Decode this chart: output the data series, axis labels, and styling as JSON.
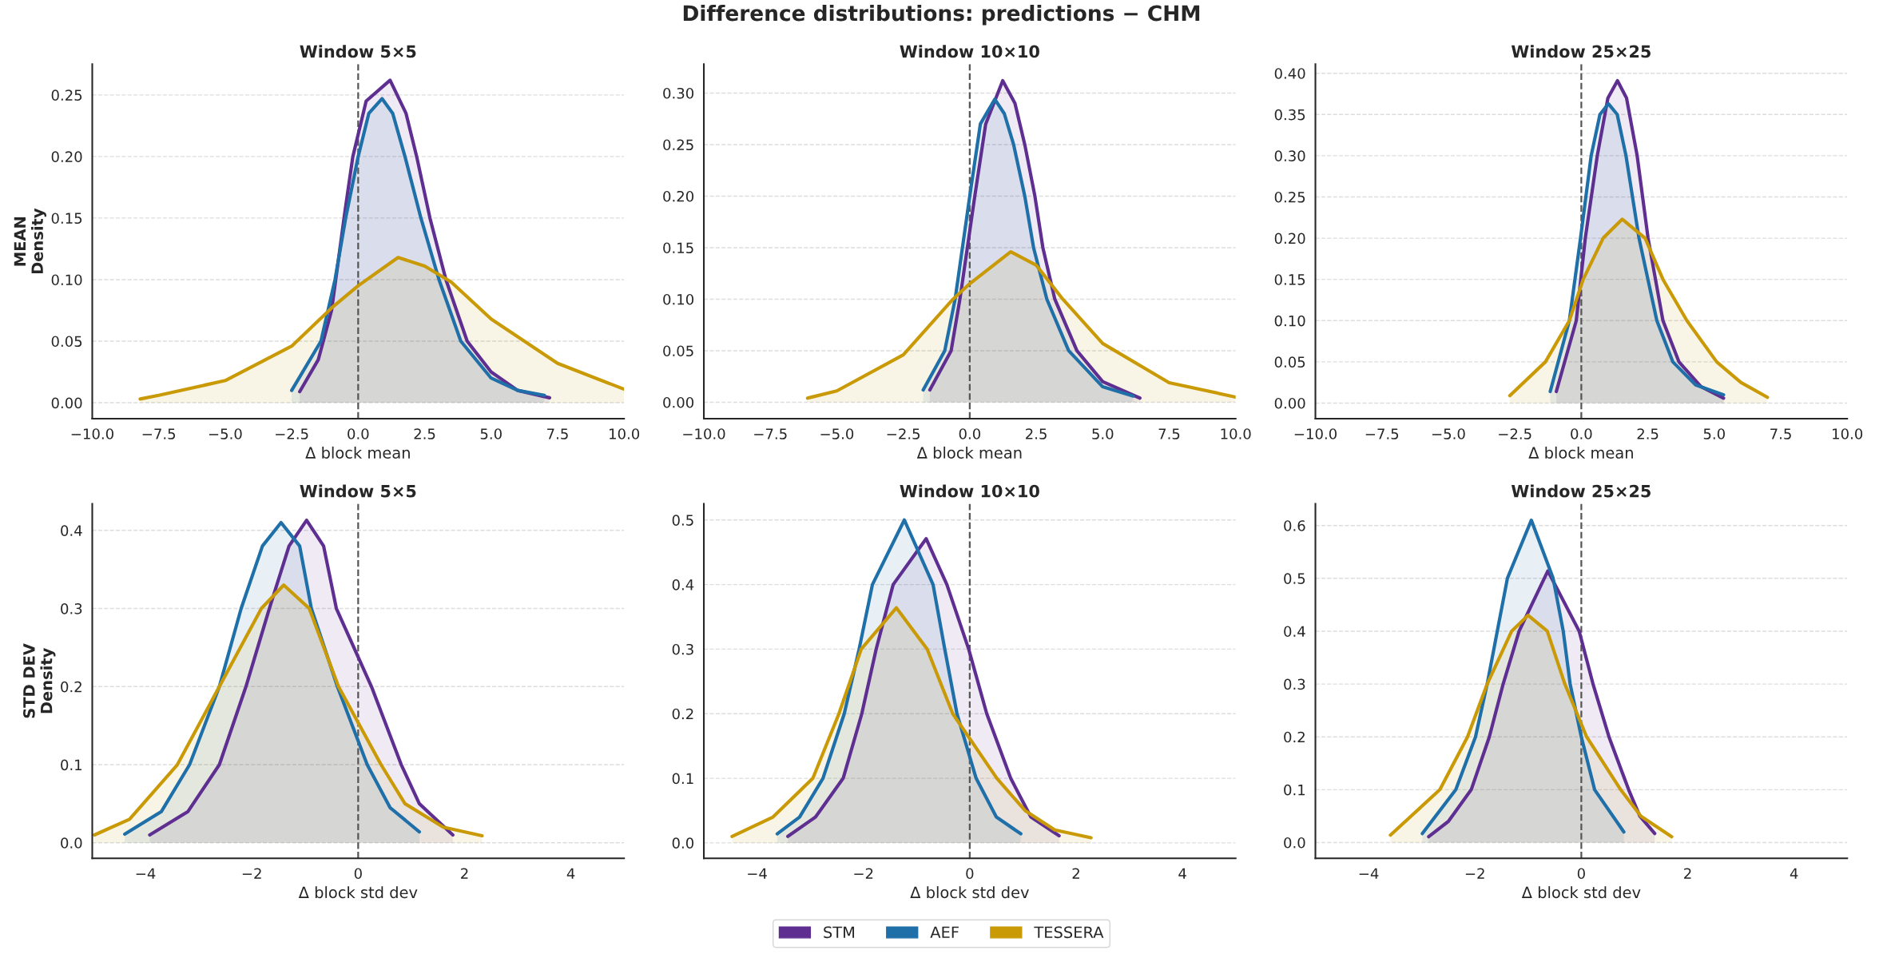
{
  "chart_data": [
    {
      "type": "area",
      "title": "Window 5×5",
      "xlabel": "Δ block mean",
      "ylabel": "MEAN\nDensity",
      "annotations": [
        "Difference distributions: predictions − CHM"
      ],
      "legend": "bottom",
      "xlim": [
        -10,
        10
      ],
      "xticks": [
        {
          "value": -10,
          "label": "−10.0"
        },
        {
          "value": -7.5,
          "label": "−7.5"
        },
        {
          "value": -5,
          "label": "−5.0"
        },
        {
          "value": -2.5,
          "label": "−2.5"
        },
        {
          "value": 0,
          "label": "0.0"
        },
        {
          "value": 2.5,
          "label": "2.5"
        },
        {
          "value": 5,
          "label": "5.0"
        },
        {
          "value": 7.5,
          "label": "7.5"
        },
        {
          "value": 10,
          "label": "10.0"
        }
      ],
      "ylim": [
        -0.013,
        0.275
      ],
      "yticks": [
        {
          "value": 0,
          "label": "0.00"
        },
        {
          "value": 0.05,
          "label": "0.05"
        },
        {
          "value": 0.1,
          "label": "0.10"
        },
        {
          "value": 0.15,
          "label": "0.15"
        },
        {
          "value": 0.2,
          "label": "0.20"
        },
        {
          "value": 0.25,
          "label": "0.25"
        }
      ],
      "grid": "y",
      "ref_lines": [
        {
          "axis": "x",
          "value": 0,
          "color": "#555555",
          "line_style": "dashed"
        }
      ],
      "series": [
        {
          "name": "STM",
          "color": "#5e2f91",
          "x": [
            -2.2,
            -1.5,
            -1.0,
            -0.5,
            -0.2,
            0.3,
            1.2,
            1.8,
            2.2,
            2.7,
            3.3,
            4.1,
            5,
            6,
            7.2
          ],
          "values": [
            0.009,
            0.035,
            0.075,
            0.155,
            0.2,
            0.245,
            0.262,
            0.235,
            0.2,
            0.15,
            0.1,
            0.05,
            0.025,
            0.01,
            0.004
          ]
        },
        {
          "name": "AEF",
          "color": "#1f6fa8",
          "x": [
            -2.5,
            -1.4,
            -0.87,
            -0.47,
            0,
            0.4,
            0.9,
            1.3,
            1.76,
            2.36,
            3.04,
            3.86,
            5,
            6,
            7
          ],
          "values": [
            0.01,
            0.05,
            0.1,
            0.15,
            0.2,
            0.235,
            0.247,
            0.235,
            0.2,
            0.15,
            0.1,
            0.05,
            0.02,
            0.01,
            0.006
          ]
        },
        {
          "name": "TESSERA",
          "color": "#c99a06",
          "x": [
            -8.2,
            -7.5,
            -5,
            -2.5,
            -1,
            0,
            1.5,
            2.5,
            3.5,
            5,
            7.5,
            10
          ],
          "values": [
            0.003,
            0.006,
            0.018,
            0.046,
            0.077,
            0.095,
            0.118,
            0.111,
            0.098,
            0.068,
            0.032,
            0.011
          ]
        }
      ]
    },
    {
      "type": "area",
      "title": "Window 10×10",
      "xlabel": "Δ block mean",
      "xlim": [
        -10,
        10
      ],
      "xticks": [
        {
          "value": -10,
          "label": "−10.0"
        },
        {
          "value": -7.5,
          "label": "−7.5"
        },
        {
          "value": -5,
          "label": "−5.0"
        },
        {
          "value": -2.5,
          "label": "−2.5"
        },
        {
          "value": 0,
          "label": "0.0"
        },
        {
          "value": 2.5,
          "label": "2.5"
        },
        {
          "value": 5,
          "label": "5.0"
        },
        {
          "value": 7.5,
          "label": "7.5"
        },
        {
          "value": 10,
          "label": "10.0"
        }
      ],
      "ylim": [
        -0.016,
        0.328
      ],
      "yticks": [
        {
          "value": 0,
          "label": "0.00"
        },
        {
          "value": 0.05,
          "label": "0.05"
        },
        {
          "value": 0.1,
          "label": "0.10"
        },
        {
          "value": 0.15,
          "label": "0.15"
        },
        {
          "value": 0.2,
          "label": "0.20"
        },
        {
          "value": 0.25,
          "label": "0.25"
        },
        {
          "value": 0.3,
          "label": "0.30"
        }
      ],
      "grid": "y",
      "ref_lines": [
        {
          "axis": "x",
          "value": 0,
          "color": "#555555",
          "line_style": "dashed"
        }
      ],
      "series": [
        {
          "name": "STM",
          "color": "#5e2f91",
          "x": [
            -1.5,
            -0.7,
            -0.37,
            0.19,
            0.6,
            1.24,
            1.7,
            2.07,
            2.45,
            2.75,
            3.2,
            4.03,
            5,
            6.4
          ],
          "values": [
            0.012,
            0.05,
            0.1,
            0.2,
            0.27,
            0.312,
            0.29,
            0.25,
            0.2,
            0.15,
            0.1,
            0.05,
            0.02,
            0.004
          ]
        },
        {
          "name": "AEF",
          "color": "#1f6fa8",
          "x": [
            -1.75,
            -0.94,
            -0.55,
            0,
            0.4,
            0.94,
            1.3,
            1.65,
            2.07,
            2.4,
            2.9,
            3.72,
            5,
            6.15
          ],
          "values": [
            0.012,
            0.05,
            0.1,
            0.2,
            0.27,
            0.294,
            0.28,
            0.25,
            0.2,
            0.15,
            0.1,
            0.05,
            0.015,
            0.006
          ]
        },
        {
          "name": "TESSERA",
          "color": "#c99a06",
          "x": [
            -6.1,
            -5,
            -2.5,
            -0.63,
            0,
            1.54,
            2.5,
            3.5,
            5,
            7.5,
            10
          ],
          "values": [
            0.004,
            0.011,
            0.046,
            0.1,
            0.115,
            0.146,
            0.133,
            0.1,
            0.057,
            0.019,
            0.005
          ]
        }
      ]
    },
    {
      "type": "area",
      "title": "Window 25×25",
      "xlabel": "Δ block mean",
      "xlim": [
        -10,
        10
      ],
      "xticks": [
        {
          "value": -10,
          "label": "−10.0"
        },
        {
          "value": -7.5,
          "label": "−7.5"
        },
        {
          "value": -5,
          "label": "−5.0"
        },
        {
          "value": -2.5,
          "label": "−2.5"
        },
        {
          "value": 0,
          "label": "0.0"
        },
        {
          "value": 2.5,
          "label": "2.5"
        },
        {
          "value": 5,
          "label": "5.0"
        },
        {
          "value": 7.5,
          "label": "7.5"
        },
        {
          "value": 10,
          "label": "10.0"
        }
      ],
      "ylim": [
        -0.019,
        0.411
      ],
      "yticks": [
        {
          "value": 0,
          "label": "0.00"
        },
        {
          "value": 0.05,
          "label": "0.05"
        },
        {
          "value": 0.1,
          "label": "0.10"
        },
        {
          "value": 0.15,
          "label": "0.15"
        },
        {
          "value": 0.2,
          "label": "0.20"
        },
        {
          "value": 0.25,
          "label": "0.25"
        },
        {
          "value": 0.3,
          "label": "0.30"
        },
        {
          "value": 0.35,
          "label": "0.35"
        },
        {
          "value": 0.4,
          "label": "0.40"
        }
      ],
      "grid": "y",
      "ref_lines": [
        {
          "axis": "x",
          "value": 0,
          "color": "#555555",
          "line_style": "dashed"
        }
      ],
      "series": [
        {
          "name": "STM",
          "color": "#5e2f91",
          "x": [
            -0.94,
            -0.19,
            0.15,
            0.6,
            1.0,
            1.36,
            1.7,
            2.1,
            2.51,
            3.07,
            3.67,
            4.5,
            5.35
          ],
          "values": [
            0.014,
            0.1,
            0.2,
            0.3,
            0.37,
            0.391,
            0.37,
            0.3,
            0.2,
            0.1,
            0.05,
            0.02,
            0.006
          ]
        },
        {
          "name": "AEF",
          "color": "#1f6fa8",
          "x": [
            -1.17,
            -0.45,
            -0.03,
            0.37,
            0.7,
            1.02,
            1.35,
            1.68,
            2.17,
            2.84,
            3.44,
            4.3,
            5.35
          ],
          "values": [
            0.014,
            0.1,
            0.2,
            0.3,
            0.35,
            0.363,
            0.35,
            0.3,
            0.2,
            0.1,
            0.05,
            0.022,
            0.01
          ]
        },
        {
          "name": "TESSERA",
          "color": "#c99a06",
          "x": [
            -2.69,
            -1.35,
            -0.45,
            0.07,
            0.82,
            1.54,
            2.4,
            3.07,
            3.97,
            5.09,
            6,
            7
          ],
          "values": [
            0.009,
            0.05,
            0.1,
            0.15,
            0.2,
            0.223,
            0.2,
            0.15,
            0.1,
            0.05,
            0.025,
            0.007
          ]
        }
      ]
    },
    {
      "type": "area",
      "title": "Window 5×5",
      "xlabel": "Δ block std dev",
      "ylabel": "STD DEV\nDensity",
      "xlim": [
        -5,
        5
      ],
      "xticks": [
        {
          "value": -4,
          "label": "−4"
        },
        {
          "value": -2,
          "label": "−2"
        },
        0,
        2,
        4
      ],
      "ylim": [
        -0.02,
        0.434
      ],
      "yticks": [
        {
          "value": 0,
          "label": "0.0"
        },
        0.1,
        0.2,
        0.3,
        0.4
      ],
      "grid": "y",
      "ref_lines": [
        {
          "axis": "x",
          "value": 0,
          "color": "#555555",
          "line_style": "dashed"
        }
      ],
      "series": [
        {
          "name": "STM",
          "color": "#5e2f91",
          "x": [
            -3.92,
            -3.2,
            -2.61,
            -2.11,
            -1.67,
            -1.3,
            -0.97,
            -0.65,
            -0.41,
            0.25,
            0.81,
            1.15,
            1.78
          ],
          "values": [
            0.01,
            0.04,
            0.1,
            0.2,
            0.3,
            0.38,
            0.413,
            0.38,
            0.3,
            0.2,
            0.1,
            0.05,
            0.01
          ]
        },
        {
          "name": "AEF",
          "color": "#1f6fa8",
          "x": [
            -4.39,
            -3.7,
            -3.17,
            -2.61,
            -2.2,
            -1.8,
            -1.45,
            -1.1,
            -0.88,
            -0.39,
            0.17,
            0.6,
            1.15
          ],
          "values": [
            0.011,
            0.04,
            0.1,
            0.2,
            0.3,
            0.38,
            0.41,
            0.38,
            0.3,
            0.2,
            0.1,
            0.045,
            0.014
          ]
        },
        {
          "name": "TESSERA",
          "color": "#c99a06",
          "x": [
            -4.96,
            -4.3,
            -3.4,
            -2.61,
            -1.82,
            -1.4,
            -0.92,
            -0.37,
            0.43,
            0.88,
            1.6,
            2.33
          ],
          "values": [
            0.01,
            0.03,
            0.1,
            0.2,
            0.3,
            0.33,
            0.3,
            0.2,
            0.1,
            0.05,
            0.02,
            0.009
          ]
        }
      ]
    },
    {
      "type": "area",
      "title": "Window 10×10",
      "xlabel": "Δ block std dev",
      "xlim": [
        -5,
        5
      ],
      "xticks": [
        {
          "value": -4,
          "label": "−4"
        },
        {
          "value": -2,
          "label": "−2"
        },
        0,
        2,
        4
      ],
      "ylim": [
        -0.024,
        0.525
      ],
      "yticks": [
        {
          "value": 0,
          "label": "0.0"
        },
        0.1,
        0.2,
        0.3,
        0.4,
        0.5
      ],
      "grid": "y",
      "ref_lines": [
        {
          "axis": "x",
          "value": 0,
          "color": "#555555",
          "line_style": "dashed"
        }
      ],
      "series": [
        {
          "name": "STM",
          "color": "#5e2f91",
          "x": [
            -3.42,
            -2.9,
            -2.38,
            -2.03,
            -1.76,
            -1.44,
            -0.82,
            -0.43,
            -0.02,
            0.32,
            0.77,
            1.15,
            1.68
          ],
          "values": [
            0.01,
            0.04,
            0.1,
            0.2,
            0.3,
            0.4,
            0.471,
            0.4,
            0.3,
            0.2,
            0.1,
            0.04,
            0.011
          ]
        },
        {
          "name": "AEF",
          "color": "#1f6fa8",
          "x": [
            -3.62,
            -3.2,
            -2.76,
            -2.36,
            -2.08,
            -1.83,
            -1.23,
            -0.69,
            -0.47,
            -0.24,
            0.12,
            0.5,
            0.96
          ],
          "values": [
            0.014,
            0.04,
            0.1,
            0.2,
            0.3,
            0.4,
            0.5,
            0.4,
            0.3,
            0.2,
            0.1,
            0.04,
            0.014
          ]
        },
        {
          "name": "TESSERA",
          "color": "#c99a06",
          "x": [
            -4.47,
            -3.7,
            -2.95,
            -2.46,
            -2.04,
            -1.38,
            -0.8,
            -0.32,
            0.51,
            1.04,
            1.6,
            2.28
          ],
          "values": [
            0.01,
            0.04,
            0.1,
            0.2,
            0.3,
            0.364,
            0.3,
            0.2,
            0.1,
            0.05,
            0.02,
            0.008
          ]
        }
      ]
    },
    {
      "type": "area",
      "title": "Window 25×25",
      "xlabel": "Δ block std dev",
      "xlim": [
        -5,
        5
      ],
      "xticks": [
        {
          "value": -4,
          "label": "−4"
        },
        {
          "value": -2,
          "label": "−2"
        },
        0,
        2,
        4
      ],
      "ylim": [
        -0.03,
        0.641
      ],
      "yticks": [
        {
          "value": 0,
          "label": "0.0"
        },
        0.1,
        0.2,
        0.3,
        0.4,
        0.5,
        0.6
      ],
      "grid": "y",
      "ref_lines": [
        {
          "axis": "x",
          "value": 0,
          "color": "#555555",
          "line_style": "dashed"
        }
      ],
      "series": [
        {
          "name": "STM",
          "color": "#5e2f91",
          "x": [
            -2.87,
            -2.5,
            -2.07,
            -1.73,
            -1.47,
            -1.17,
            -0.63,
            -0.04,
            0.22,
            0.52,
            0.89,
            1.1,
            1.38
          ],
          "values": [
            0.011,
            0.04,
            0.1,
            0.2,
            0.3,
            0.4,
            0.514,
            0.4,
            0.3,
            0.2,
            0.1,
            0.05,
            0.017
          ]
        },
        {
          "name": "AEF",
          "color": "#1f6fa8",
          "x": [
            -2.99,
            -2.36,
            -1.99,
            -1.77,
            -1.58,
            -1.39,
            -0.94,
            -0.53,
            -0.34,
            -0.21,
            0,
            0.25,
            0.8
          ],
          "values": [
            0.017,
            0.1,
            0.2,
            0.3,
            0.4,
            0.5,
            0.61,
            0.5,
            0.4,
            0.3,
            0.2,
            0.1,
            0.02
          ]
        },
        {
          "name": "TESSERA",
          "color": "#c99a06",
          "x": [
            -3.59,
            -2.66,
            -2.14,
            -1.77,
            -1.31,
            -1.0,
            -0.64,
            -0.31,
            0.1,
            0.74,
            1.12,
            1.7
          ],
          "values": [
            0.014,
            0.1,
            0.2,
            0.3,
            0.4,
            0.43,
            0.4,
            0.3,
            0.2,
            0.1,
            0.05,
            0.011
          ]
        }
      ]
    }
  ]
}
